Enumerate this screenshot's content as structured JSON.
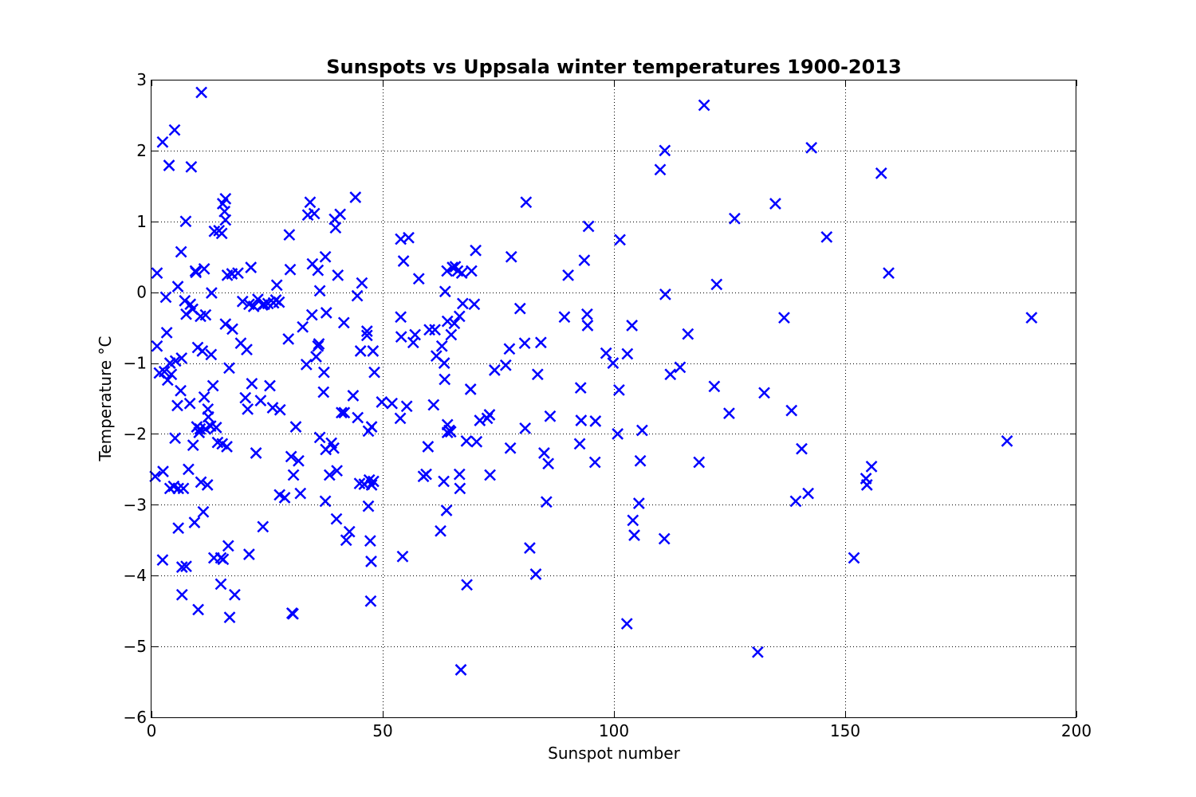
{
  "chart_data": {
    "type": "scatter",
    "title": "Sunspots vs Uppsala winter temperatures 1900-2013",
    "xlabel": "Sunspot number",
    "ylabel": "Temperature °C",
    "xlim": [
      0,
      200
    ],
    "ylim": [
      -6,
      3
    ],
    "xticks": [
      0,
      50,
      100,
      150,
      200
    ],
    "xtick_labels": [
      "0",
      "50",
      "100",
      "150",
      "200"
    ],
    "yticks": [
      -6,
      -5,
      -4,
      -3,
      -2,
      -1,
      0,
      1,
      2,
      3
    ],
    "ytick_labels": [
      "−6",
      "−5",
      "−4",
      "−3",
      "−2",
      "−1",
      "0",
      "1",
      "2",
      "3"
    ],
    "grid": true,
    "marker": "x",
    "marker_color": "#0000ff",
    "series": [
      {
        "points": [
          [
            0.8,
            -2.6
          ],
          [
            1.2,
            0.27
          ],
          [
            1.2,
            -0.76
          ],
          [
            1.7,
            -1.14
          ],
          [
            2.4,
            2.12
          ],
          [
            2.4,
            -3.78
          ],
          [
            2.5,
            -2.53
          ],
          [
            2.8,
            -1.12
          ],
          [
            3.1,
            -0.07
          ],
          [
            3.3,
            -0.57
          ],
          [
            3.5,
            -1.24
          ],
          [
            3.8,
            1.79
          ],
          [
            4.0,
            -2.77
          ],
          [
            4.0,
            -1.0
          ],
          [
            4.3,
            -1.16
          ],
          [
            4.8,
            -2.74
          ],
          [
            5.0,
            2.29
          ],
          [
            5.1,
            -2.06
          ],
          [
            5.2,
            -0.97
          ],
          [
            5.6,
            -1.6
          ],
          [
            5.7,
            0.08
          ],
          [
            5.8,
            -2.77
          ],
          [
            5.8,
            -3.33
          ],
          [
            6.3,
            -1.39
          ],
          [
            6.4,
            0.57
          ],
          [
            6.5,
            -0.93
          ],
          [
            6.6,
            -3.88
          ],
          [
            6.6,
            -4.27
          ],
          [
            6.9,
            -2.77
          ],
          [
            7.2,
            -0.12
          ],
          [
            7.4,
            1.0
          ],
          [
            7.5,
            -0.31
          ],
          [
            7.5,
            -3.87
          ],
          [
            8.0,
            -2.5
          ],
          [
            8.3,
            -1.57
          ],
          [
            8.4,
            -0.17
          ],
          [
            8.6,
            1.77
          ],
          [
            8.9,
            -0.24
          ],
          [
            9.0,
            -2.16
          ],
          [
            9.3,
            -3.25
          ],
          [
            9.5,
            0.3
          ],
          [
            9.6,
            0.28
          ],
          [
            9.8,
            -1.9
          ],
          [
            10.0,
            -0.78
          ],
          [
            10.1,
            -4.48
          ],
          [
            10.3,
            -1.98
          ],
          [
            10.5,
            -1.93
          ],
          [
            10.6,
            -0.34
          ],
          [
            10.7,
            -2.68
          ],
          [
            10.8,
            2.82
          ],
          [
            11.0,
            -0.83
          ],
          [
            11.2,
            -3.1
          ],
          [
            11.4,
            0.33
          ],
          [
            11.4,
            -1.48
          ],
          [
            11.7,
            -1.93
          ],
          [
            11.7,
            -0.32
          ],
          [
            12.1,
            -2.72
          ],
          [
            12.2,
            -1.65
          ],
          [
            12.3,
            -1.76
          ],
          [
            12.8,
            -1.89
          ],
          [
            12.9,
            -0.88
          ],
          [
            13.0,
            -0.01
          ],
          [
            13.3,
            -1.32
          ],
          [
            13.5,
            -3.75
          ],
          [
            13.6,
            0.86
          ],
          [
            14.0,
            -1.91
          ],
          [
            14.3,
            -2.12
          ],
          [
            14.6,
            0.87
          ],
          [
            15.0,
            -4.12
          ],
          [
            15.0,
            -3.75
          ],
          [
            15.2,
            0.83
          ],
          [
            15.3,
            -2.14
          ],
          [
            15.4,
            1.25
          ],
          [
            15.5,
            -3.77
          ],
          [
            15.8,
            1.14
          ],
          [
            16.0,
            -0.45
          ],
          [
            16.0,
            1.32
          ],
          [
            16.0,
            1.02
          ],
          [
            16.3,
            -2.18
          ],
          [
            16.4,
            0.24
          ],
          [
            16.6,
            -3.58
          ],
          [
            16.8,
            -1.07
          ],
          [
            16.9,
            -4.59
          ],
          [
            17.4,
            0.26
          ],
          [
            17.5,
            -0.52
          ],
          [
            18.0,
            -4.27
          ],
          [
            18.7,
            0.27
          ],
          [
            19.3,
            -0.72
          ],
          [
            19.7,
            -0.13
          ],
          [
            20.3,
            -1.49
          ],
          [
            20.6,
            -0.81
          ],
          [
            20.8,
            -1.65
          ],
          [
            21.1,
            -0.17
          ],
          [
            21.1,
            -3.7
          ],
          [
            21.5,
            0.35
          ],
          [
            21.7,
            -1.29
          ],
          [
            22.1,
            -0.2
          ],
          [
            22.6,
            -2.27
          ],
          [
            23.0,
            -0.1
          ],
          [
            23.6,
            -1.53
          ],
          [
            24.0,
            -0.18
          ],
          [
            24.1,
            -3.31
          ],
          [
            24.4,
            -0.17
          ],
          [
            25.2,
            -0.16
          ],
          [
            25.6,
            -1.32
          ],
          [
            26.2,
            -1.63
          ],
          [
            26.4,
            -0.15
          ],
          [
            26.9,
            -0.11
          ],
          [
            27.1,
            0.1
          ],
          [
            27.6,
            -0.14
          ],
          [
            27.7,
            -2.86
          ],
          [
            27.8,
            -1.66
          ],
          [
            28.8,
            -2.9
          ],
          [
            29.6,
            -0.66
          ],
          [
            29.8,
            0.81
          ],
          [
            30.0,
            0.32
          ],
          [
            30.2,
            -2.32
          ],
          [
            30.4,
            -4.53
          ],
          [
            30.6,
            -4.54
          ],
          [
            30.7,
            -2.58
          ],
          [
            31.2,
            -1.9
          ],
          [
            31.8,
            -2.38
          ],
          [
            32.2,
            -2.84
          ],
          [
            32.7,
            -0.49
          ],
          [
            33.5,
            -1.02
          ],
          [
            33.8,
            1.09
          ],
          [
            34.3,
            1.27
          ],
          [
            34.7,
            -0.32
          ],
          [
            34.8,
            0.4
          ],
          [
            35.2,
            1.11
          ],
          [
            35.6,
            -0.91
          ],
          [
            36.0,
            0.31
          ],
          [
            36.0,
            -0.76
          ],
          [
            36.2,
            -0.73
          ],
          [
            36.4,
            0.02
          ],
          [
            36.4,
            -2.05
          ],
          [
            37.2,
            -1.41
          ],
          [
            37.3,
            -1.13
          ],
          [
            37.6,
            0.5
          ],
          [
            37.6,
            -2.95
          ],
          [
            37.7,
            -2.22
          ],
          [
            37.8,
            -0.29
          ],
          [
            38.5,
            -2.58
          ],
          [
            38.9,
            -2.13
          ],
          [
            39.4,
            -2.2
          ],
          [
            39.6,
            1.03
          ],
          [
            39.8,
            0.91
          ],
          [
            40.0,
            -3.2
          ],
          [
            40.1,
            -2.52
          ],
          [
            40.3,
            0.24
          ],
          [
            40.8,
            1.1
          ],
          [
            41.1,
            -1.7
          ],
          [
            41.6,
            -0.43
          ],
          [
            41.7,
            -1.7
          ],
          [
            42.1,
            -3.5
          ],
          [
            42.8,
            -3.38
          ],
          [
            43.6,
            -1.46
          ],
          [
            44.1,
            1.34
          ],
          [
            44.5,
            -0.05
          ],
          [
            44.6,
            -1.77
          ],
          [
            45.0,
            -2.7
          ],
          [
            45.2,
            -0.83
          ],
          [
            45.5,
            0.13
          ],
          [
            46.0,
            -2.71
          ],
          [
            46.6,
            -0.55
          ],
          [
            46.6,
            -0.61
          ],
          [
            46.9,
            -3.02
          ],
          [
            46.9,
            -1.96
          ],
          [
            47.1,
            -2.65
          ],
          [
            47.3,
            -3.51
          ],
          [
            47.4,
            -4.36
          ],
          [
            47.5,
            -3.8
          ],
          [
            47.6,
            -1.9
          ],
          [
            47.6,
            -2.72
          ],
          [
            47.9,
            -0.83
          ],
          [
            48.0,
            -2.67
          ],
          [
            48.2,
            -1.13
          ],
          [
            49.8,
            -1.55
          ],
          [
            52.0,
            -1.57
          ],
          [
            53.8,
            -1.78
          ],
          [
            53.9,
            -0.35
          ],
          [
            53.9,
            0.75
          ],
          [
            54.0,
            -0.63
          ],
          [
            54.3,
            -3.73
          ],
          [
            54.5,
            0.44
          ],
          [
            55.2,
            -1.61
          ],
          [
            55.6,
            0.77
          ],
          [
            56.6,
            -0.71
          ],
          [
            57.0,
            -0.6
          ],
          [
            57.8,
            0.19
          ],
          [
            58.8,
            -2.6
          ],
          [
            59.4,
            -2.57
          ],
          [
            59.8,
            -2.18
          ],
          [
            60.1,
            -0.53
          ],
          [
            61.0,
            -1.59
          ],
          [
            61.3,
            -0.53
          ],
          [
            61.6,
            -0.9
          ],
          [
            62.5,
            -3.37
          ],
          [
            62.8,
            -0.76
          ],
          [
            63.2,
            -2.67
          ],
          [
            63.3,
            -1.0
          ],
          [
            63.4,
            -1.23
          ],
          [
            63.5,
            0.01
          ],
          [
            63.8,
            -3.08
          ],
          [
            63.9,
            0.3
          ],
          [
            64.0,
            -1.87
          ],
          [
            64.0,
            -0.41
          ],
          [
            64.0,
            -1.98
          ],
          [
            64.4,
            -1.95
          ],
          [
            64.7,
            -1.97
          ],
          [
            64.8,
            -0.6
          ],
          [
            65.1,
            0.35
          ],
          [
            65.5,
            -0.44
          ],
          [
            65.7,
            0.36
          ],
          [
            66.2,
            0.3
          ],
          [
            66.6,
            -0.34
          ],
          [
            66.6,
            -2.57
          ],
          [
            66.7,
            -2.77
          ],
          [
            66.9,
            -5.33
          ],
          [
            67.1,
            0.27
          ],
          [
            67.3,
            -0.16
          ],
          [
            68.1,
            -2.1
          ],
          [
            68.2,
            -4.13
          ],
          [
            69.0,
            -1.37
          ],
          [
            69.2,
            0.3
          ],
          [
            69.8,
            -0.17
          ],
          [
            70.1,
            0.59
          ],
          [
            70.3,
            -2.11
          ],
          [
            71.0,
            -1.81
          ],
          [
            72.6,
            -1.78
          ],
          [
            73.1,
            -1.73
          ],
          [
            73.2,
            -2.58
          ],
          [
            74.2,
            -1.1
          ],
          [
            76.6,
            -1.03
          ],
          [
            77.4,
            -0.8
          ],
          [
            77.6,
            -2.2
          ],
          [
            77.8,
            0.5
          ],
          [
            79.7,
            -0.23
          ],
          [
            80.7,
            -0.72
          ],
          [
            80.8,
            -1.92
          ],
          [
            81.0,
            1.27
          ],
          [
            81.8,
            -3.61
          ],
          [
            83.1,
            -3.98
          ],
          [
            83.5,
            -1.16
          ],
          [
            84.2,
            -0.71
          ],
          [
            84.9,
            -2.27
          ],
          [
            85.4,
            -2.96
          ],
          [
            85.8,
            -2.42
          ],
          [
            86.2,
            -1.75
          ],
          [
            89.3,
            -0.35
          ],
          [
            90.1,
            0.24
          ],
          [
            92.6,
            -2.14
          ],
          [
            92.8,
            -1.35
          ],
          [
            92.9,
            -1.81
          ],
          [
            93.6,
            0.45
          ],
          [
            94.2,
            -0.31
          ],
          [
            94.3,
            -0.47
          ],
          [
            94.5,
            0.93
          ],
          [
            95.9,
            -2.4
          ],
          [
            96.0,
            -1.82
          ],
          [
            98.3,
            -0.86
          ],
          [
            99.8,
            -1.0
          ],
          [
            100.8,
            -2.0
          ],
          [
            101.1,
            -1.38
          ],
          [
            101.3,
            0.74
          ],
          [
            102.8,
            -4.68
          ],
          [
            102.9,
            -0.87
          ],
          [
            103.9,
            -0.47
          ],
          [
            104.1,
            -3.22
          ],
          [
            104.4,
            -3.43
          ],
          [
            105.4,
            -2.98
          ],
          [
            105.7,
            -2.38
          ],
          [
            106.1,
            -1.95
          ],
          [
            110.0,
            1.73
          ],
          [
            110.9,
            -3.48
          ],
          [
            111.0,
            2.0
          ],
          [
            111.1,
            -0.03
          ],
          [
            112.2,
            -1.16
          ],
          [
            114.3,
            -1.06
          ],
          [
            116.0,
            -0.59
          ],
          [
            118.4,
            -2.4
          ],
          [
            119.5,
            2.64
          ],
          [
            121.7,
            -1.33
          ],
          [
            122.2,
            0.11
          ],
          [
            124.9,
            -1.71
          ],
          [
            126.1,
            1.04
          ],
          [
            131.1,
            -5.08
          ],
          [
            132.5,
            -1.42
          ],
          [
            134.9,
            1.25
          ],
          [
            136.8,
            -0.36
          ],
          [
            138.4,
            -1.67
          ],
          [
            139.3,
            -2.95
          ],
          [
            140.6,
            -2.21
          ],
          [
            142.0,
            -2.84
          ],
          [
            142.7,
            2.04
          ],
          [
            146.0,
            0.78
          ],
          [
            151.9,
            -3.75
          ],
          [
            154.5,
            -2.63
          ],
          [
            154.7,
            -2.72
          ],
          [
            155.7,
            -2.46
          ],
          [
            157.8,
            1.68
          ],
          [
            159.4,
            0.27
          ],
          [
            185.0,
            -2.1
          ],
          [
            190.3,
            -0.36
          ]
        ]
      }
    ]
  }
}
